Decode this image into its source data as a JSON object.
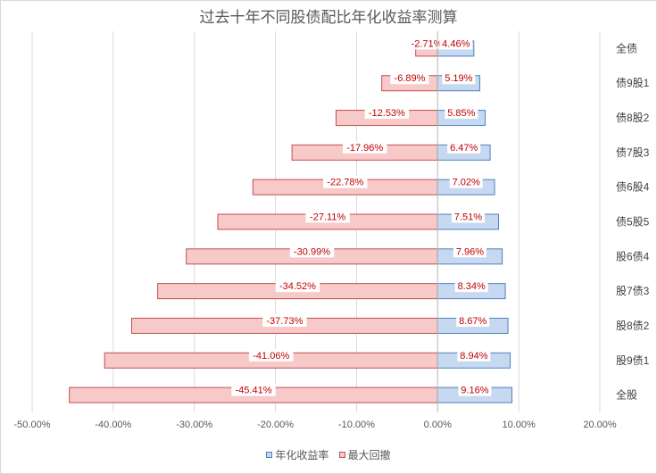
{
  "chart_data": {
    "type": "bar",
    "orientation": "horizontal",
    "title": "过去十年不同股债配比年化收益率测算",
    "categories": [
      "全债",
      "债9股1",
      "债8股2",
      "债7股3",
      "债6股4",
      "债5股5",
      "股6债4",
      "股7债3",
      "股8债2",
      "股9债1",
      "全股"
    ],
    "series": [
      {
        "name": "年化收益率",
        "color": "#4f81bd",
        "fill": "#c6d9f1",
        "values": [
          4.46,
          5.19,
          5.85,
          6.47,
          7.02,
          7.51,
          7.96,
          8.34,
          8.67,
          8.94,
          9.16
        ],
        "labels": [
          "4.46%",
          "5.19%",
          "5.85%",
          "6.47%",
          "7.02%",
          "7.51%",
          "7.96%",
          "8.34%",
          "8.67%",
          "8.94%",
          "9.16%"
        ]
      },
      {
        "name": "最大回撤",
        "color": "#c0504d",
        "fill": "#f8c9c9",
        "values": [
          -2.71,
          -6.89,
          -12.53,
          -17.96,
          -22.78,
          -27.11,
          -30.99,
          -34.52,
          -37.73,
          -41.06,
          -45.41
        ],
        "labels": [
          "-2.71%",
          "-6.89%",
          "-12.53%",
          "-17.96%",
          "-22.78%",
          "-27.11%",
          "-30.99%",
          "-34.52%",
          "-37.73%",
          "-41.06%",
          "-45.41%"
        ]
      }
    ],
    "xlim": [
      -50,
      20
    ],
    "xticks": [
      -50,
      -40,
      -30,
      -20,
      -10,
      0,
      10,
      20
    ],
    "xtick_labels": [
      "-50.00%",
      "-40.00%",
      "-30.00%",
      "-20.00%",
      "-10.00%",
      "0.00%",
      "10.00%",
      "20.00%"
    ],
    "category_axis": "right",
    "grid": "vertical",
    "legend": "bottom"
  }
}
